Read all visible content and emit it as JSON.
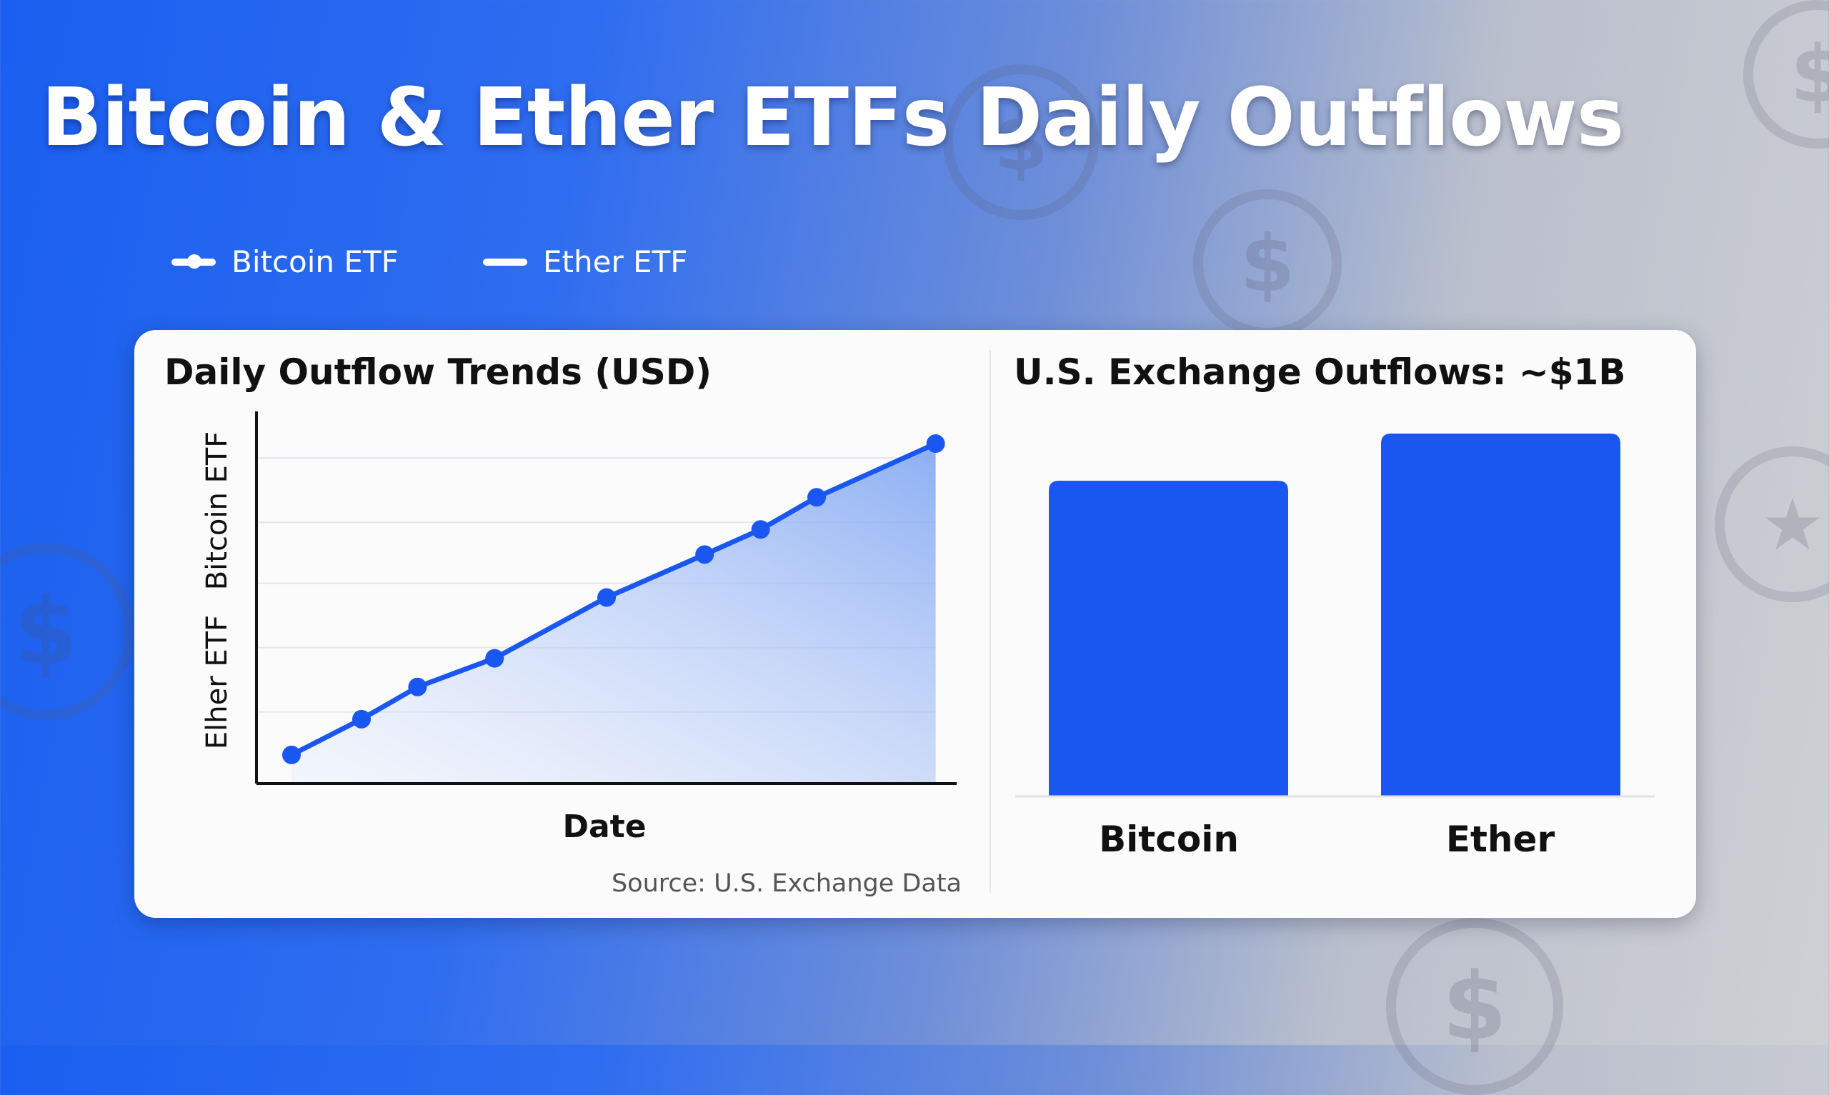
{
  "title": "Bitcoin & Ether ETFs Daily Outflows",
  "legend": [
    {
      "label": "Bitcoin ETF",
      "icon": "line-with-dot"
    },
    {
      "label": "Ether ETF",
      "icon": "line"
    }
  ],
  "colors": {
    "accent": "#1a56f0",
    "card": "#fbfbfc",
    "text": "#111111",
    "source_text": "#555555"
  },
  "chart_data": [
    {
      "type": "area",
      "title": "Daily Outflow Trends (USD)",
      "xlabel": "Date",
      "ylabels": [
        "Bitcoin ETF",
        "Elher ETF"
      ],
      "x": [
        5,
        15,
        23,
        34,
        50,
        64,
        72,
        80,
        97
      ],
      "values": [
        8,
        18,
        27,
        35,
        52,
        64,
        71,
        80,
        95
      ],
      "xlim": [
        0,
        100
      ],
      "ylim": [
        0,
        100
      ],
      "grid": true,
      "gridlines": [
        20,
        38,
        56,
        73,
        91
      ],
      "source": "Source: U.S. Exchange Data"
    },
    {
      "type": "bar",
      "title": "U.S. Exchange Outflows: ~$1B",
      "categories": [
        "Bitcoin",
        "Ether"
      ],
      "values": [
        87,
        100
      ],
      "ylim": [
        0,
        100
      ]
    }
  ]
}
